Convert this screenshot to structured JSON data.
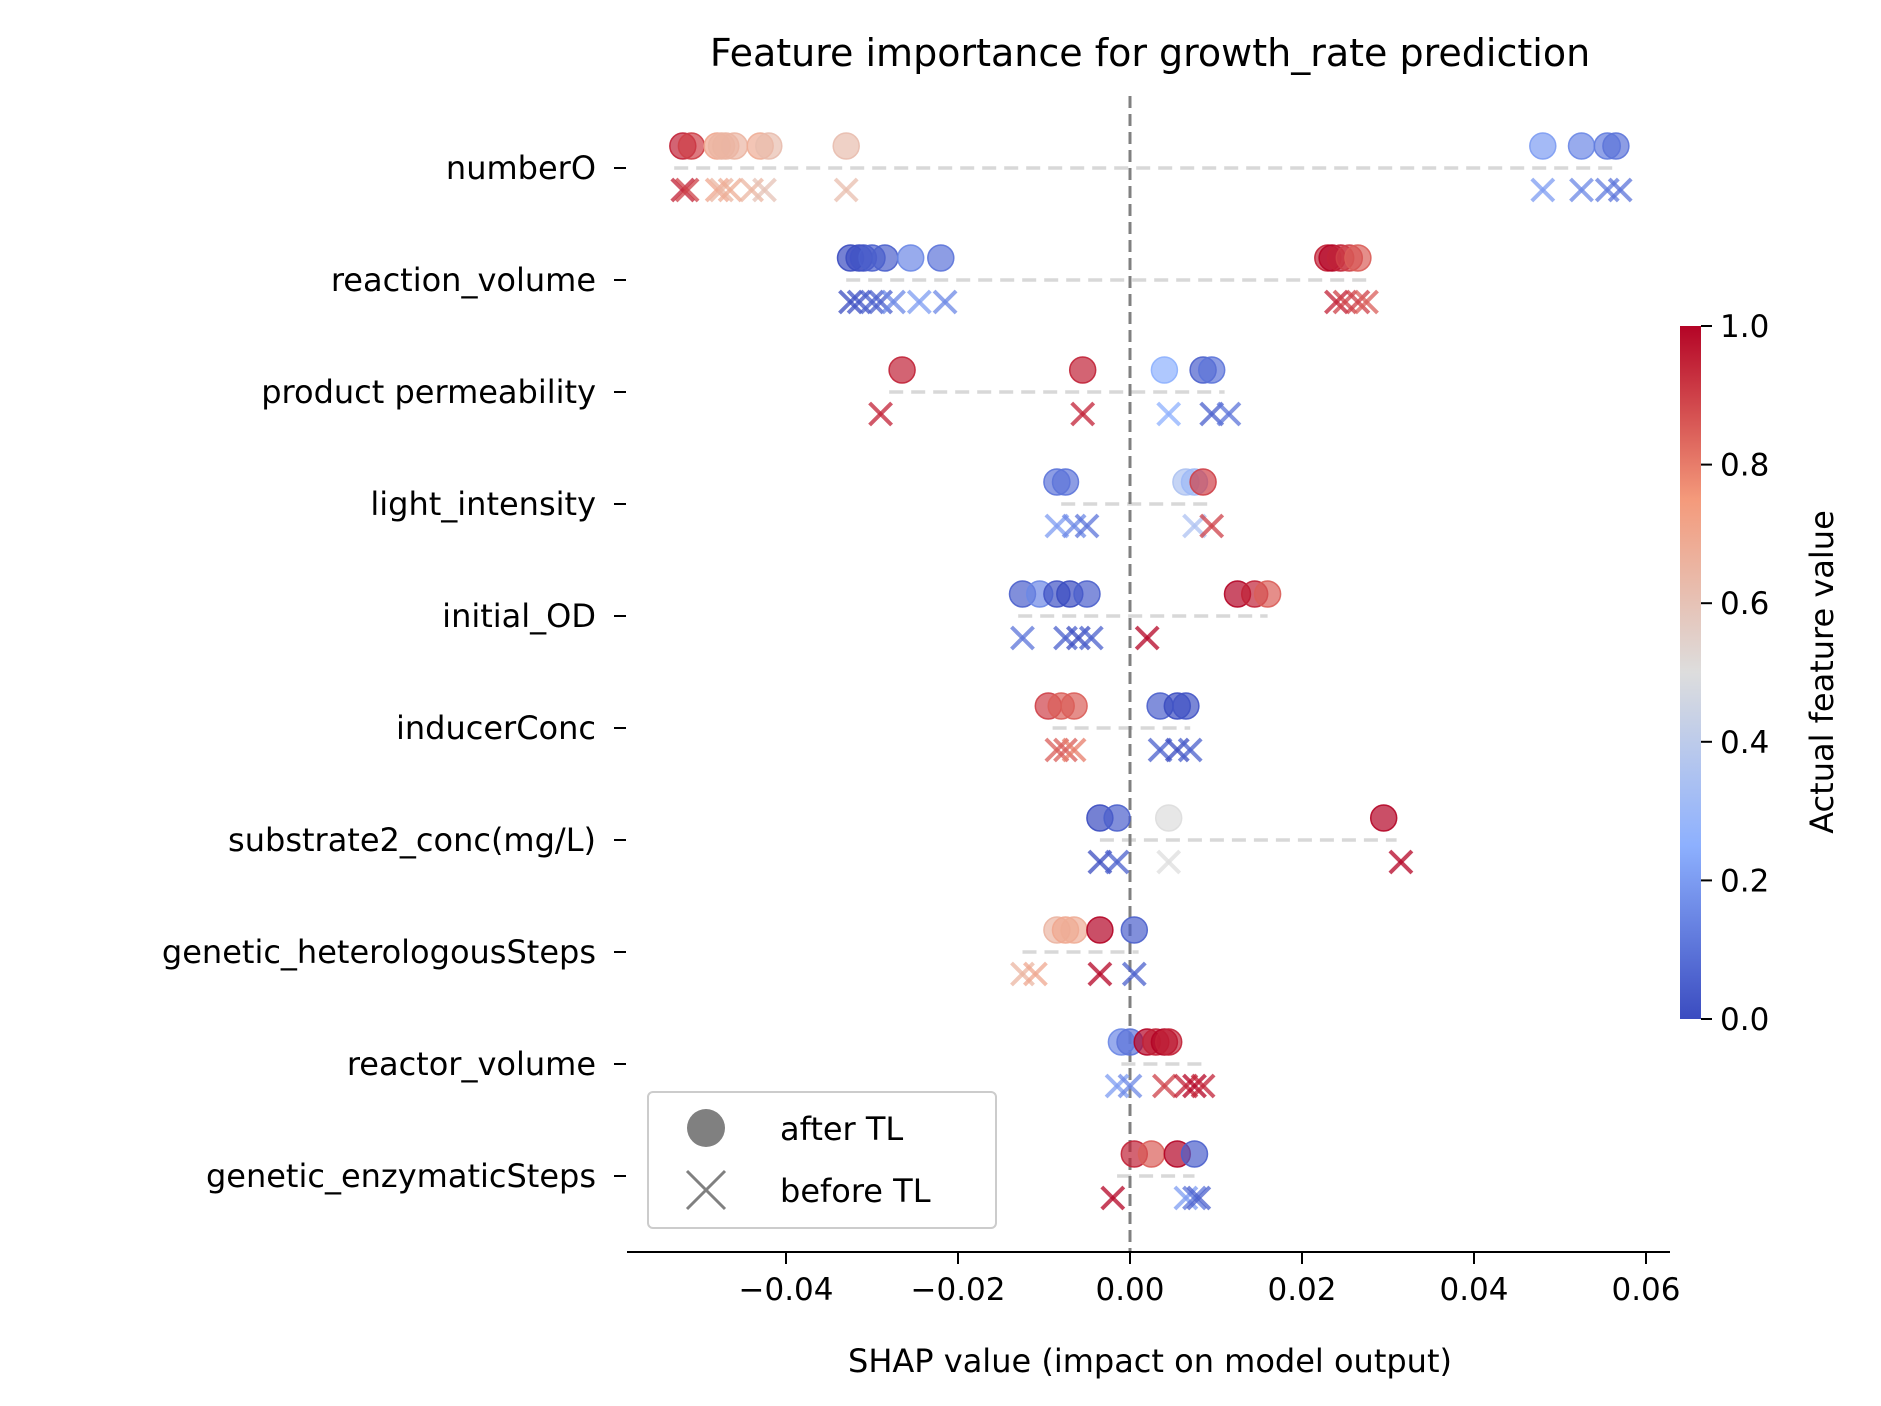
{
  "chart_data": {
    "type": "scatter",
    "title": "Feature importance for growth_rate prediction",
    "xlabel": "SHAP value (impact on model output)",
    "xlim": [
      -0.058,
      0.063
    ],
    "xticks": [
      -0.04,
      -0.02,
      0.0,
      0.02,
      0.04,
      0.06
    ],
    "xtick_labels": [
      "−0.04",
      "−0.02",
      "0.00",
      "0.02",
      "0.04",
      "0.06"
    ],
    "zero_line": 0.0,
    "legend": {
      "location": "bottom-left",
      "entries": [
        {
          "marker": "circle",
          "label": "after TL"
        },
        {
          "marker": "x",
          "label": "before TL"
        }
      ]
    },
    "colorbar": {
      "label": "Actual feature value",
      "colormap": "coolwarm",
      "low_color": "#3b4cc0",
      "mid_color": "#dddddd",
      "high_color": "#b40426",
      "ticks": [
        0.0,
        0.2,
        0.4,
        0.6,
        0.8,
        1.0
      ],
      "tick_labels": [
        "0.0",
        "0.2",
        "0.4",
        "0.6",
        "0.8",
        "1.0"
      ]
    },
    "features": [
      {
        "name": "numberO",
        "range": [
          -0.053,
          0.057
        ],
        "after": [
          [
            -0.052,
            0.95
          ],
          [
            -0.051,
            0.9
          ],
          [
            -0.048,
            0.7
          ],
          [
            -0.0475,
            0.65
          ],
          [
            -0.047,
            0.65
          ],
          [
            -0.046,
            0.65
          ],
          [
            -0.043,
            0.68
          ],
          [
            -0.042,
            0.62
          ],
          [
            -0.033,
            0.62
          ],
          [
            0.048,
            0.2
          ],
          [
            0.0525,
            0.15
          ],
          [
            0.0555,
            0.12
          ],
          [
            0.0565,
            0.1
          ]
        ],
        "before": [
          [
            -0.052,
            0.95
          ],
          [
            -0.0515,
            0.9
          ],
          [
            -0.048,
            0.7
          ],
          [
            -0.0475,
            0.65
          ],
          [
            -0.0465,
            0.68
          ],
          [
            -0.044,
            0.65
          ],
          [
            -0.0425,
            0.6
          ],
          [
            -0.033,
            0.62
          ],
          [
            0.048,
            0.2
          ],
          [
            0.0525,
            0.15
          ],
          [
            0.0555,
            0.12
          ],
          [
            0.057,
            0.1
          ]
        ]
      },
      {
        "name": "reaction_volume",
        "range": [
          -0.033,
          0.028
        ],
        "after": [
          [
            -0.0325,
            0.0
          ],
          [
            -0.0315,
            0.0
          ],
          [
            -0.031,
            0.02
          ],
          [
            -0.03,
            0.05
          ],
          [
            -0.0285,
            0.05
          ],
          [
            -0.0255,
            0.15
          ],
          [
            -0.022,
            0.1
          ],
          [
            0.023,
            0.95
          ],
          [
            0.0235,
            1.0
          ],
          [
            0.0245,
            0.95
          ],
          [
            0.0255,
            0.9
          ],
          [
            0.0265,
            0.85
          ]
        ],
        "before": [
          [
            -0.0325,
            0.0
          ],
          [
            -0.0315,
            0.02
          ],
          [
            -0.03,
            0.05
          ],
          [
            -0.029,
            0.05
          ],
          [
            -0.0275,
            0.15
          ],
          [
            -0.0245,
            0.2
          ],
          [
            -0.0215,
            0.15
          ],
          [
            0.024,
            0.95
          ],
          [
            0.025,
            0.9
          ],
          [
            0.0265,
            0.9
          ],
          [
            0.0275,
            0.85
          ]
        ]
      },
      {
        "name": "product permeability",
        "range": [
          -0.028,
          0.011
        ],
        "after": [
          [
            -0.0265,
            0.95
          ],
          [
            -0.0055,
            0.95
          ],
          [
            0.004,
            0.25
          ],
          [
            0.0085,
            0.05
          ],
          [
            0.0095,
            0.1
          ]
        ],
        "before": [
          [
            -0.029,
            0.95
          ],
          [
            -0.0055,
            0.95
          ],
          [
            0.0045,
            0.25
          ],
          [
            0.0095,
            0.05
          ],
          [
            0.0115,
            0.1
          ]
        ]
      },
      {
        "name": "light_intensity",
        "range": [
          -0.008,
          0.009
        ],
        "after": [
          [
            -0.0085,
            0.1
          ],
          [
            -0.0075,
            0.1
          ],
          [
            0.0065,
            0.35
          ],
          [
            0.0075,
            0.3
          ],
          [
            0.0085,
            0.9
          ]
        ],
        "before": [
          [
            -0.0085,
            0.2
          ],
          [
            -0.0065,
            0.15
          ],
          [
            -0.005,
            0.1
          ],
          [
            0.0075,
            0.35
          ],
          [
            0.0095,
            0.9
          ]
        ]
      },
      {
        "name": "initial_OD",
        "range": [
          -0.013,
          0.016
        ],
        "after": [
          [
            -0.0125,
            0.05
          ],
          [
            -0.0105,
            0.15
          ],
          [
            -0.0085,
            0.02
          ],
          [
            -0.007,
            0.0
          ],
          [
            -0.005,
            0.05
          ],
          [
            0.0125,
            1.0
          ],
          [
            0.0145,
            0.95
          ],
          [
            0.016,
            0.85
          ]
        ],
        "before": [
          [
            -0.0125,
            0.1
          ],
          [
            -0.0075,
            0.05
          ],
          [
            -0.006,
            0.0
          ],
          [
            -0.0045,
            0.05
          ],
          [
            0.002,
            1.0
          ]
        ]
      },
      {
        "name": "inducerConc",
        "range": [
          -0.009,
          0.007
        ],
        "after": [
          [
            -0.0095,
            0.9
          ],
          [
            -0.008,
            0.85
          ],
          [
            -0.0065,
            0.85
          ],
          [
            0.0035,
            0.05
          ],
          [
            0.0055,
            0.0
          ],
          [
            0.0065,
            0.02
          ]
        ],
        "before": [
          [
            -0.0085,
            0.85
          ],
          [
            -0.0075,
            0.85
          ],
          [
            -0.0065,
            0.8
          ],
          [
            0.0035,
            0.05
          ],
          [
            0.0055,
            0.0
          ],
          [
            0.007,
            0.05
          ]
        ]
      },
      {
        "name": "substrate2_conc(mg/L)",
        "range": [
          -0.0035,
          0.031
        ],
        "after": [
          [
            -0.0035,
            0.0
          ],
          [
            -0.0015,
            0.05
          ],
          [
            0.0045,
            0.5
          ],
          [
            0.0295,
            1.0
          ]
        ],
        "before": [
          [
            -0.0035,
            0.0
          ],
          [
            -0.0015,
            0.05
          ],
          [
            0.0045,
            0.5
          ],
          [
            0.0315,
            1.0
          ]
        ]
      },
      {
        "name": "genetic_heterologousSteps",
        "range": [
          -0.0125,
          0.001
        ],
        "after": [
          [
            -0.0085,
            0.65
          ],
          [
            -0.0075,
            0.7
          ],
          [
            -0.0065,
            0.68
          ],
          [
            -0.0035,
            1.0
          ],
          [
            0.0005,
            0.05
          ]
        ],
        "before": [
          [
            -0.0125,
            0.65
          ],
          [
            -0.011,
            0.7
          ],
          [
            -0.0035,
            1.0
          ],
          [
            0.0005,
            0.05
          ]
        ]
      },
      {
        "name": "reactor_volume",
        "range": [
          -0.001,
          0.0085
        ],
        "after": [
          [
            -0.001,
            0.15
          ],
          [
            0.0,
            0.1
          ],
          [
            0.002,
            1.0
          ],
          [
            0.003,
            0.95
          ],
          [
            0.004,
            1.0
          ],
          [
            0.0045,
            0.95
          ]
        ],
        "before": [
          [
            -0.0015,
            0.2
          ],
          [
            0.0,
            0.15
          ],
          [
            0.004,
            0.9
          ],
          [
            0.0065,
            0.95
          ],
          [
            0.0075,
            1.0
          ],
          [
            0.0085,
            0.95
          ]
        ]
      },
      {
        "name": "genetic_enzymaticSteps",
        "range": [
          -0.0015,
          0.0075
        ],
        "after": [
          [
            0.0005,
            0.95
          ],
          [
            0.0025,
            0.85
          ],
          [
            0.0055,
            1.0
          ],
          [
            0.0075,
            0.05
          ]
        ],
        "before": [
          [
            -0.002,
            1.0
          ],
          [
            0.0065,
            0.2
          ],
          [
            0.0075,
            0.1
          ],
          [
            0.008,
            0.05
          ]
        ]
      }
    ]
  }
}
